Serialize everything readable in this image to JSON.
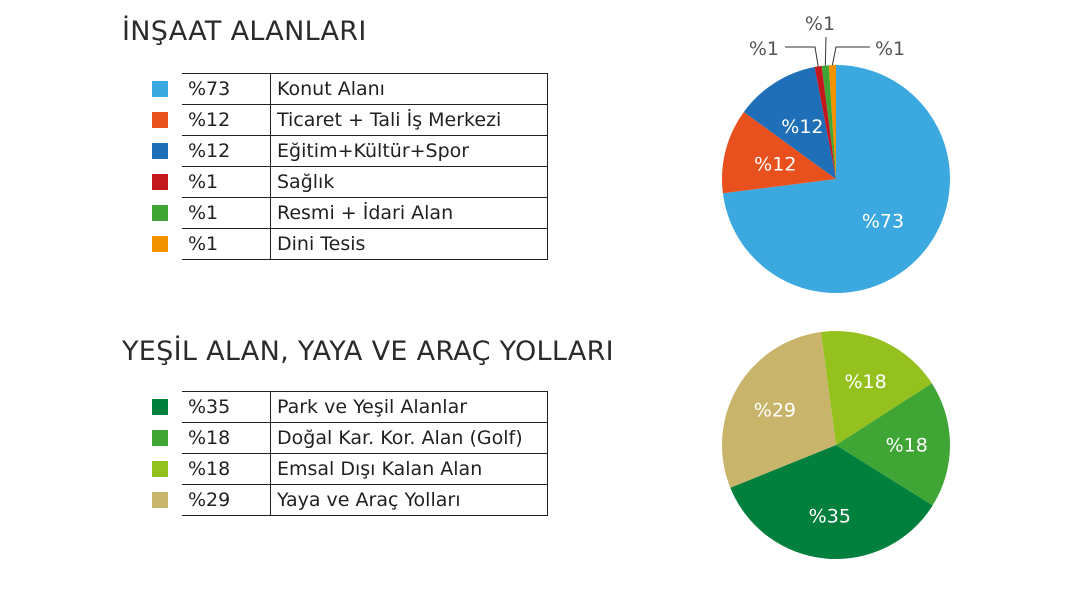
{
  "chart_data": [
    {
      "type": "pie",
      "title": "İNŞAAT ALANLARI",
      "slices": [
        {
          "label": "Konut Alanı",
          "value": 73,
          "display": "%73",
          "color": "#3ba8e0"
        },
        {
          "label": "Ticaret + Tali İş Merkezi",
          "value": 12,
          "display": "%12",
          "color": "#e8501d"
        },
        {
          "label": "Eğitim+Kültür+Spor",
          "value": 12,
          "display": "%12",
          "color": "#1f6fb8"
        },
        {
          "label": "Sağlık",
          "value": 1,
          "display": "%1",
          "color": "#c4171d"
        },
        {
          "label": "Resmi  + İdari Alan",
          "value": 1,
          "display": "%1",
          "color": "#3fa535"
        },
        {
          "label": "Dini Tesis",
          "value": 1,
          "display": "%1",
          "color": "#f39200"
        }
      ]
    },
    {
      "type": "pie",
      "title": "YEŞİL ALAN, YAYA VE ARAÇ YOLLARI",
      "slices": [
        {
          "label": "Park ve Yeşil Alanlar",
          "value": 35,
          "display": "%35",
          "color": "#00803c"
        },
        {
          "label": "Doğal Kar. Kor. Alan (Golf)",
          "value": 18,
          "display": "%18",
          "color": "#3fa535"
        },
        {
          "label": "Emsal Dışı Kalan Alan",
          "value": 18,
          "display": "%18",
          "color": "#95c11f"
        },
        {
          "label": "Yaya ve Araç Yolları",
          "value": 29,
          "display": "%29",
          "color": "#c9b46c"
        }
      ]
    }
  ]
}
